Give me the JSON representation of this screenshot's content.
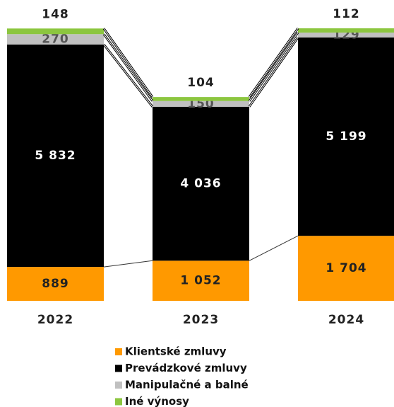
{
  "chart_data": {
    "type": "stacked_bar",
    "categories": [
      "2022",
      "2023",
      "2024"
    ],
    "series": [
      {
        "name": "Klientské zmluvy",
        "color": "#ff9900",
        "values": [
          889,
          1052,
          1704
        ],
        "value_labels": [
          "889",
          "1 052",
          "1 704"
        ]
      },
      {
        "name": "Prevádzkové zmluvy",
        "color": "#000000",
        "values": [
          5832,
          4036,
          5199
        ],
        "value_labels": [
          "5 832",
          "4 036",
          "5 199"
        ]
      },
      {
        "name": "Manipulačné a balné",
        "color": "#c0c0c0",
        "values": [
          270,
          150,
          129
        ]
      },
      {
        "name": "Iné výnosy",
        "color": "#8cc63f",
        "values": [
          148,
          104,
          112
        ]
      }
    ]
  }
}
